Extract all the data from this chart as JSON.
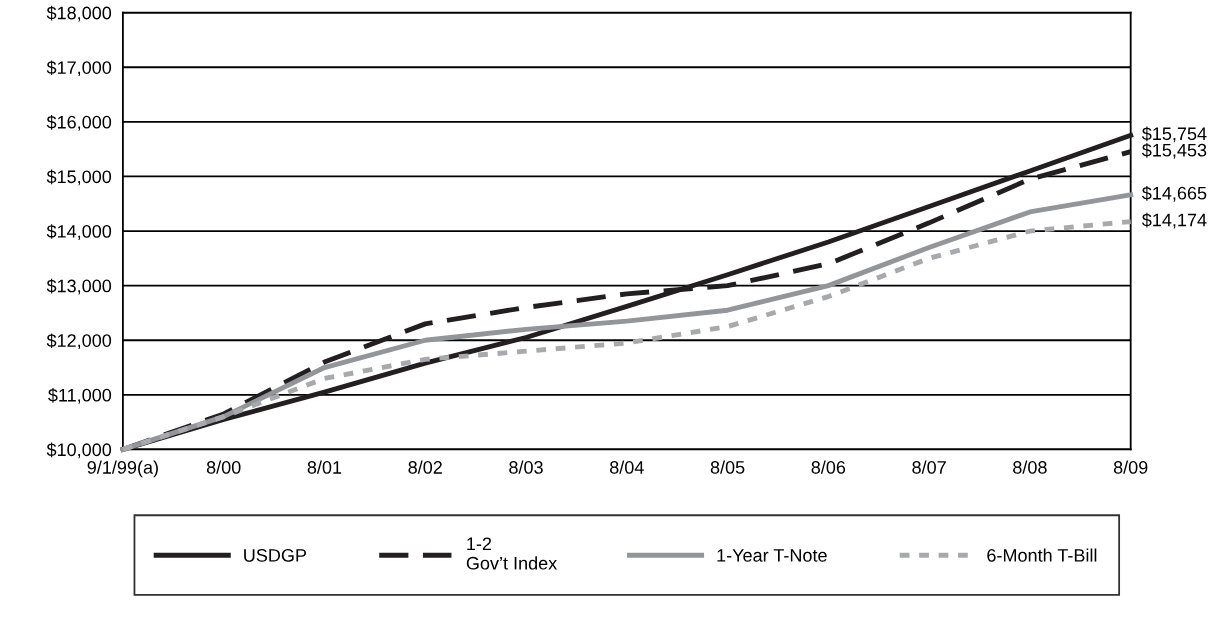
{
  "chart_data": {
    "type": "line",
    "categories": [
      "9/1/99(a)",
      "8/00",
      "8/01",
      "8/02",
      "8/03",
      "8/04",
      "8/05",
      "8/06",
      "8/07",
      "8/08",
      "8/09"
    ],
    "ylim": [
      10000,
      18000
    ],
    "yticks": [
      {
        "value": 10000,
        "label": "$10,000"
      },
      {
        "value": 11000,
        "label": "$11,000"
      },
      {
        "value": 12000,
        "label": "$12,000"
      },
      {
        "value": 13000,
        "label": "$13,000"
      },
      {
        "value": 14000,
        "label": "$14,000"
      },
      {
        "value": 15000,
        "label": "$15,000"
      },
      {
        "value": 16000,
        "label": "$16,000"
      },
      {
        "value": 17000,
        "label": "$17,000"
      },
      {
        "value": 18000,
        "label": "$18,000"
      }
    ],
    "grid": "y",
    "legend": "bottom",
    "marker": "none",
    "series": [
      {
        "name": "USDGP",
        "color": "#231f20",
        "line_style": "solid",
        "values": [
          10000,
          10550,
          11050,
          11580,
          12050,
          12620,
          13200,
          13800,
          14450,
          15100,
          15754
        ],
        "value_labels": [
          null,
          null,
          null,
          null,
          null,
          null,
          null,
          null,
          null,
          null,
          "$15,754"
        ]
      },
      {
        "name": "1-2\nGov’t Index",
        "color": "#231f20",
        "line_style": "dashed",
        "values": [
          10000,
          10650,
          11600,
          12300,
          12600,
          12850,
          13000,
          13400,
          14150,
          14950,
          15453
        ],
        "value_labels": [
          null,
          null,
          null,
          null,
          null,
          null,
          null,
          null,
          null,
          null,
          "$15,453"
        ]
      },
      {
        "name": "1-Year T-Note",
        "color": "#939598",
        "line_style": "solid",
        "values": [
          10000,
          10600,
          11500,
          12000,
          12200,
          12350,
          12550,
          13000,
          13700,
          14350,
          14665
        ],
        "value_labels": [
          null,
          null,
          null,
          null,
          null,
          null,
          null,
          null,
          null,
          null,
          "$14,665"
        ]
      },
      {
        "name": "6-Month T-Bill",
        "color": "#a7a9ac",
        "line_style": "dotted",
        "values": [
          10000,
          10600,
          11300,
          11650,
          11800,
          11950,
          12250,
          12800,
          13500,
          14000,
          14174
        ],
        "value_labels": [
          null,
          null,
          null,
          null,
          null,
          null,
          null,
          null,
          null,
          null,
          "$14,174"
        ]
      }
    ]
  }
}
